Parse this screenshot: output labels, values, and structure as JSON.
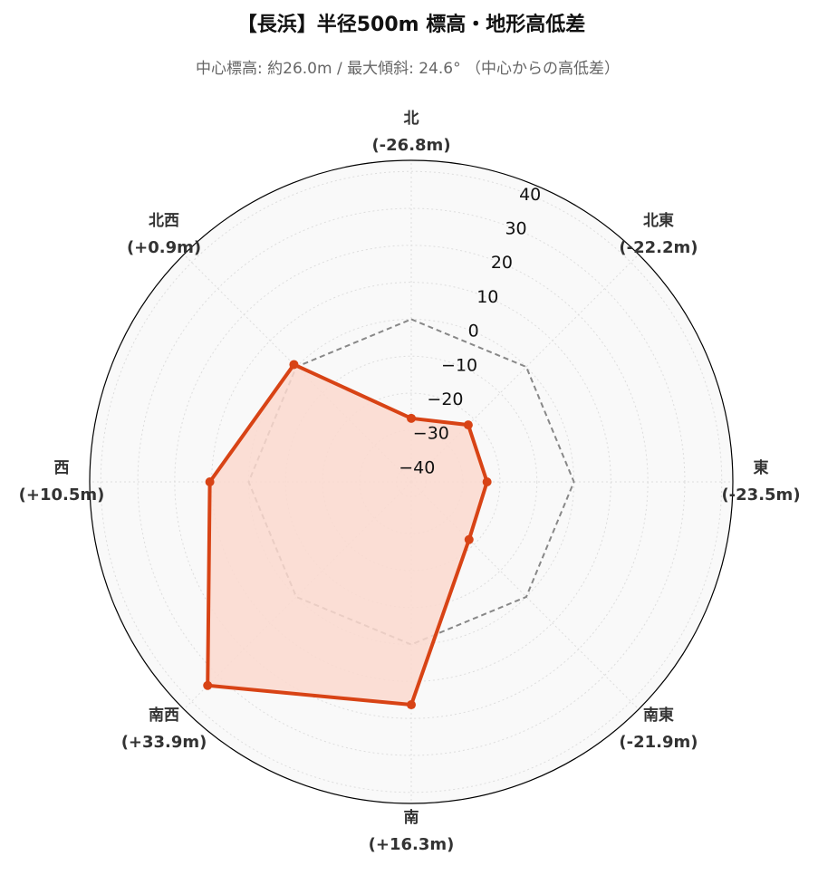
{
  "chart_data": {
    "type": "radar",
    "title": "【長浜】半径500m 標高・地形高低差",
    "subtitle": "中心標高: 約26.0m / 最大傾斜: 24.6° （中心からの高低差）",
    "categories": [
      "北",
      "北東",
      "東",
      "南東",
      "南",
      "南西",
      "西",
      "北西"
    ],
    "values": [
      -26.8,
      -22.2,
      -23.5,
      -21.9,
      16.3,
      33.9,
      10.5,
      0.9
    ],
    "value_labels": [
      "(-26.8m)",
      "(-22.2m)",
      "(-23.5m)",
      "(-21.9m)",
      "(+16.3m)",
      "(+33.9m)",
      "(+10.5m)",
      "(+0.9m)"
    ],
    "color": "#d84315",
    "fill_color": "#fcd9cf",
    "baseline": 0,
    "ylim": [
      -44,
      43
    ],
    "yticks": [
      {
        "value": -40,
        "label": "−40"
      },
      {
        "value": -30,
        "label": "−30"
      },
      {
        "value": -20,
        "label": "−20"
      },
      {
        "value": -10,
        "label": "−10"
      },
      0,
      10,
      20,
      30,
      40
    ],
    "grid": true
  }
}
